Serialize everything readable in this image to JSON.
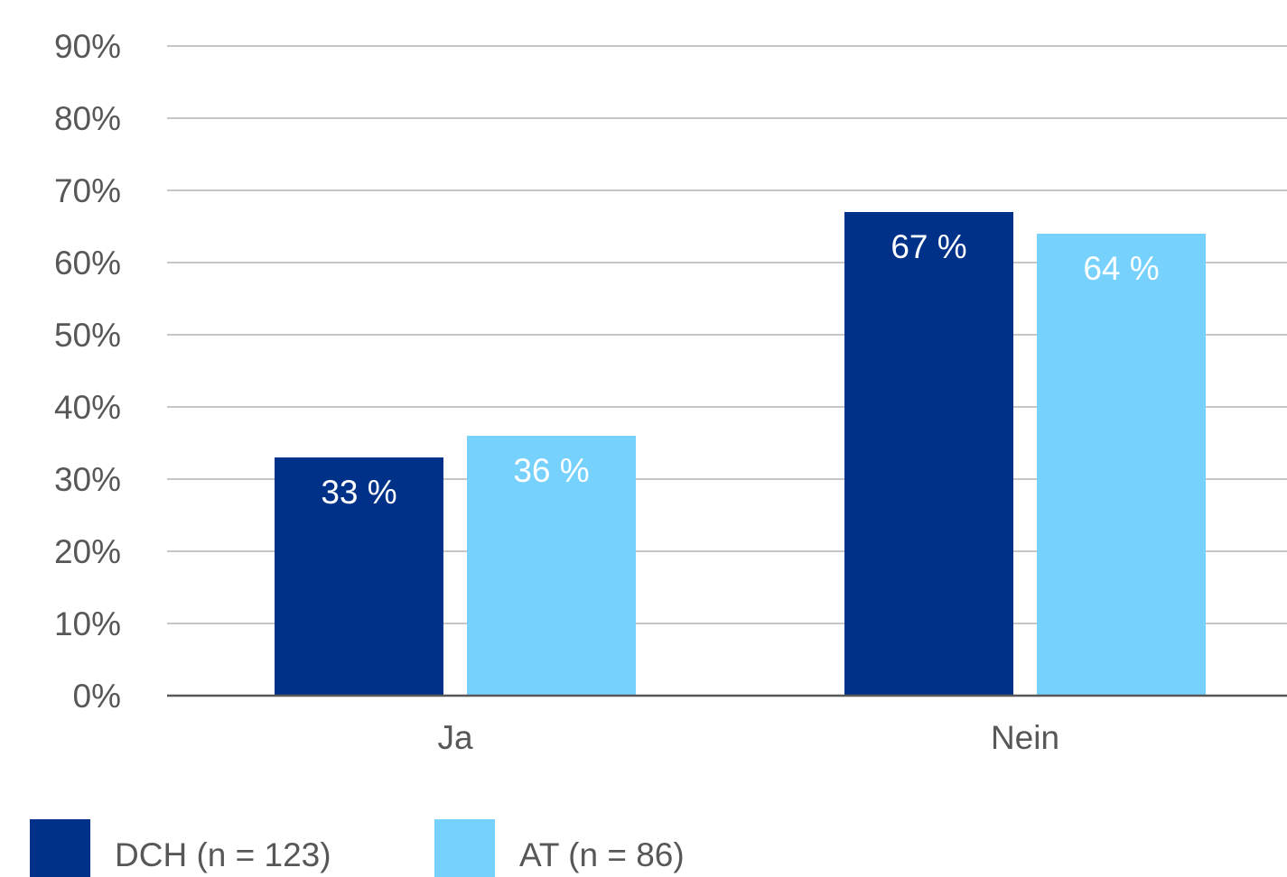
{
  "chart_data": {
    "type": "bar",
    "categories": [
      "Ja",
      "Nein"
    ],
    "series": [
      {
        "name": "DCH (n = 123)",
        "values": [
          33,
          67
        ],
        "labels": [
          "33 %",
          "67 %"
        ],
        "color": "#003189"
      },
      {
        "name": "AT (n = 86)",
        "values": [
          36,
          64
        ],
        "labels": [
          "36 %",
          "64 %"
        ],
        "color": "#76d1fc"
      }
    ],
    "ylim": [
      0,
      90
    ],
    "yticks": [
      "0%",
      "10%",
      "20%",
      "30%",
      "40%",
      "50%",
      "60%",
      "70%",
      "80%",
      "90%"
    ],
    "grid": true,
    "legend": "bottom-left",
    "colors": {
      "grid": "#b3b3b3",
      "axis": "#575757",
      "text": "#575757"
    }
  }
}
